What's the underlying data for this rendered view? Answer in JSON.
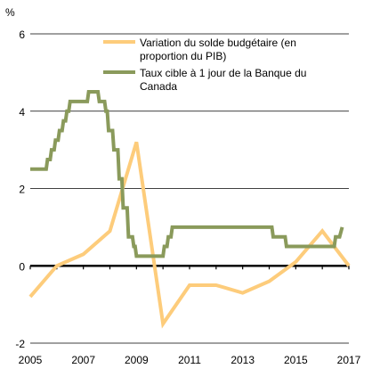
{
  "chart_data": {
    "type": "line",
    "ylabel": "%",
    "ylim": [
      -2,
      6
    ],
    "xlim": [
      2005,
      2017
    ],
    "y_ticks": [
      "6",
      "4",
      "2",
      "0",
      "-2"
    ],
    "x_ticks": [
      "2005",
      "2007",
      "2009",
      "2011",
      "2013",
      "2015",
      "2017"
    ],
    "grid": "horizontal",
    "legend_position": "top-right",
    "zero_line": true,
    "series": [
      {
        "name": "Variation du solde budgétaire (en proportion du PIB)",
        "name_lines": [
          "Variation du solde budgétaire (en",
          "proportion du PIB)"
        ],
        "color": "#FDCC7B",
        "points": [
          [
            2005,
            -0.8
          ],
          [
            2006,
            0.0
          ],
          [
            2007,
            0.3
          ],
          [
            2008,
            0.9
          ],
          [
            2009,
            3.2
          ],
          [
            2010,
            -1.5
          ],
          [
            2011,
            -0.5
          ],
          [
            2012,
            -0.5
          ],
          [
            2013,
            -0.7
          ],
          [
            2014,
            -0.4
          ],
          [
            2015,
            0.1
          ],
          [
            2016,
            0.9
          ],
          [
            2017,
            0.0
          ]
        ]
      },
      {
        "name": "Taux cible à 1 jour de la Banque du Canada",
        "name_lines": [
          "Taux cible à 1 jour de la Banque du",
          "Canada"
        ],
        "color": "#8A9A5B",
        "points": [
          [
            2005,
            2.5
          ],
          [
            2005.6,
            2.5
          ],
          [
            2005.65,
            2.75
          ],
          [
            2005.75,
            2.75
          ],
          [
            2005.8,
            3.0
          ],
          [
            2005.9,
            3.0
          ],
          [
            2005.95,
            3.25
          ],
          [
            2006.05,
            3.25
          ],
          [
            2006.1,
            3.5
          ],
          [
            2006.2,
            3.5
          ],
          [
            2006.25,
            3.75
          ],
          [
            2006.33,
            3.75
          ],
          [
            2006.38,
            4.0
          ],
          [
            2006.45,
            4.0
          ],
          [
            2006.5,
            4.25
          ],
          [
            2007.15,
            4.25
          ],
          [
            2007.2,
            4.5
          ],
          [
            2007.55,
            4.5
          ],
          [
            2007.6,
            4.25
          ],
          [
            2007.8,
            4.25
          ],
          [
            2007.85,
            4.0
          ],
          [
            2007.9,
            4.0
          ],
          [
            2007.95,
            3.5
          ],
          [
            2008.1,
            3.5
          ],
          [
            2008.15,
            3.0
          ],
          [
            2008.3,
            3.0
          ],
          [
            2008.35,
            2.25
          ],
          [
            2008.45,
            2.25
          ],
          [
            2008.5,
            1.5
          ],
          [
            2008.65,
            1.5
          ],
          [
            2008.7,
            0.75
          ],
          [
            2008.85,
            0.75
          ],
          [
            2008.9,
            0.5
          ],
          [
            2008.95,
            0.5
          ],
          [
            2009.0,
            0.25
          ],
          [
            2010.0,
            0.25
          ],
          [
            2010.05,
            0.5
          ],
          [
            2010.15,
            0.5
          ],
          [
            2010.2,
            0.75
          ],
          [
            2010.3,
            0.75
          ],
          [
            2010.35,
            1.0
          ],
          [
            2014.1,
            1.0
          ],
          [
            2014.15,
            0.75
          ],
          [
            2014.6,
            0.75
          ],
          [
            2014.65,
            0.5
          ],
          [
            2016.45,
            0.5
          ],
          [
            2016.5,
            0.75
          ],
          [
            2016.65,
            0.75
          ],
          [
            2016.75,
            1.0
          ]
        ]
      }
    ]
  }
}
